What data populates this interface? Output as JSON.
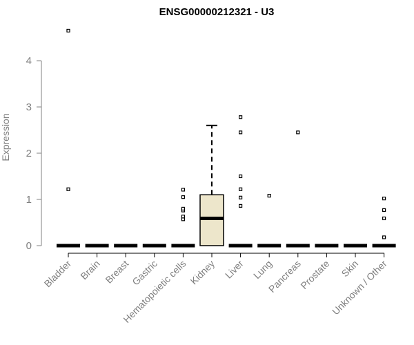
{
  "chart_data": {
    "type": "box",
    "title": "ENSG00000212321 - U3",
    "xlabel": "",
    "ylabel": "Expression",
    "ylim": [
      0,
      4.7
    ],
    "yticks": [
      "0",
      "1",
      "2",
      "3",
      "4"
    ],
    "grid": false,
    "box_fill": "#ede6cb",
    "categories": [
      "Bladder",
      "Brain",
      "Breast",
      "Gastric",
      "Hematopoietic cells",
      "Kidney",
      "Liver",
      "Lung",
      "Pancreas",
      "Prostate",
      "Skin",
      "Unknown / Other"
    ],
    "boxes": [
      {
        "q1": 0,
        "median": 0,
        "q3": 0,
        "whisker_low": 0,
        "whisker_high": 0,
        "outliers": [
          1.22,
          4.65
        ]
      },
      {
        "q1": 0,
        "median": 0,
        "q3": 0,
        "whisker_low": 0,
        "whisker_high": 0,
        "outliers": []
      },
      {
        "q1": 0,
        "median": 0,
        "q3": 0,
        "whisker_low": 0,
        "whisker_high": 0,
        "outliers": []
      },
      {
        "q1": 0,
        "median": 0,
        "q3": 0,
        "whisker_low": 0,
        "whisker_high": 0,
        "outliers": []
      },
      {
        "q1": 0,
        "median": 0,
        "q3": 0,
        "whisker_low": 0,
        "whisker_high": 0,
        "outliers": [
          0.57,
          0.63,
          0.76,
          0.8,
          1.05,
          1.21
        ]
      },
      {
        "q1": 0,
        "median": 0.59,
        "q3": 1.1,
        "whisker_low": 0,
        "whisker_high": 2.6,
        "outliers": []
      },
      {
        "q1": 0,
        "median": 0,
        "q3": 0,
        "whisker_low": 0,
        "whisker_high": 0,
        "outliers": [
          0.86,
          1.04,
          1.22,
          1.5,
          2.45,
          2.78
        ]
      },
      {
        "q1": 0,
        "median": 0,
        "q3": 0,
        "whisker_low": 0,
        "whisker_high": 0,
        "outliers": [
          1.08
        ]
      },
      {
        "q1": 0,
        "median": 0,
        "q3": 0,
        "whisker_low": 0,
        "whisker_high": 0,
        "outliers": [
          2.45
        ]
      },
      {
        "q1": 0,
        "median": 0,
        "q3": 0,
        "whisker_low": 0,
        "whisker_high": 0,
        "outliers": []
      },
      {
        "q1": 0,
        "median": 0,
        "q3": 0,
        "whisker_low": 0,
        "whisker_high": 0,
        "outliers": []
      },
      {
        "q1": 0,
        "median": 0,
        "q3": 0,
        "whisker_low": 0,
        "whisker_high": 0,
        "outliers": [
          0.18,
          0.59,
          0.77,
          1.02
        ]
      }
    ]
  }
}
